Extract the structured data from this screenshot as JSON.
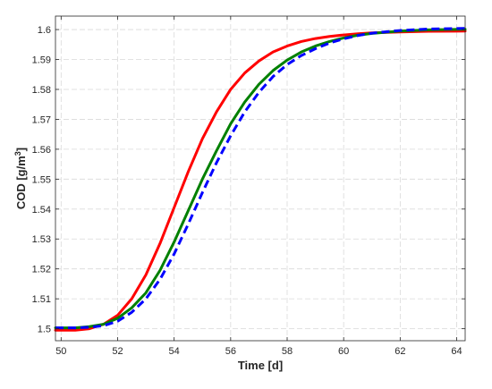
{
  "chart_data": {
    "type": "line",
    "title": "",
    "xlabel": "Time [d]",
    "ylabel_main": "COD [g/m",
    "ylabel_sup": "3",
    "ylabel_close": "]",
    "xlim": [
      49.8,
      64.3
    ],
    "ylim": [
      1.496,
      1.6045
    ],
    "xticks": [
      50,
      52,
      54,
      56,
      58,
      60,
      62,
      64
    ],
    "yticks": [
      1.5,
      1.51,
      1.52,
      1.53,
      1.54,
      1.55,
      1.56,
      1.57,
      1.58,
      1.59,
      1.6
    ],
    "xtick_labels": [
      "50",
      "52",
      "54",
      "56",
      "58",
      "60",
      "62",
      "64"
    ],
    "ytick_labels": [
      "1.5",
      "1.51",
      "1.52",
      "1.53",
      "1.54",
      "1.55",
      "1.56",
      "1.57",
      "1.58",
      "1.59",
      "1.6"
    ],
    "grid": true,
    "legend": "none",
    "series": [
      {
        "color": "#ff0000",
        "style": "solid",
        "x": [
          49.8,
          50.5,
          51.0,
          51.5,
          52.0,
          52.5,
          53.0,
          53.5,
          54.0,
          54.5,
          55.0,
          55.5,
          56.0,
          56.5,
          57.0,
          57.5,
          58.0,
          58.5,
          59.0,
          59.5,
          60.0,
          60.5,
          61.0,
          62.0,
          63.0,
          64.3
        ],
        "y": [
          1.4995,
          1.4995,
          1.5,
          1.5015,
          1.5045,
          1.51,
          1.518,
          1.5285,
          1.5405,
          1.5525,
          1.5635,
          1.5725,
          1.58,
          1.5855,
          1.5895,
          1.5925,
          1.5945,
          1.596,
          1.597,
          1.5977,
          1.5982,
          1.5986,
          1.5989,
          1.5992,
          1.5994,
          1.5995
        ]
      },
      {
        "color": "#008000",
        "style": "solid",
        "x": [
          49.8,
          50.5,
          51.0,
          51.5,
          52.0,
          52.5,
          53.0,
          53.5,
          54.0,
          54.5,
          55.0,
          55.5,
          56.0,
          56.5,
          57.0,
          57.5,
          58.0,
          58.5,
          59.0,
          59.5,
          60.0,
          60.5,
          61.0,
          62.0,
          63.0,
          64.3
        ],
        "y": [
          1.5003,
          1.5003,
          1.5007,
          1.5015,
          1.5035,
          1.507,
          1.512,
          1.5195,
          1.529,
          1.5395,
          1.55,
          1.5595,
          1.5685,
          1.5758,
          1.5817,
          1.5863,
          1.5898,
          1.5925,
          1.5945,
          1.596,
          1.5972,
          1.5981,
          1.5987,
          1.5995,
          1.5999,
          1.6001
        ]
      },
      {
        "color": "#0000ff",
        "style": "dashed",
        "x": [
          49.8,
          50.5,
          51.0,
          51.5,
          52.0,
          52.5,
          53.0,
          53.5,
          54.0,
          54.5,
          55.0,
          55.5,
          56.0,
          56.5,
          57.0,
          57.5,
          58.0,
          58.5,
          59.0,
          59.5,
          60.0,
          60.5,
          61.0,
          62.0,
          63.0,
          64.3
        ],
        "y": [
          1.5003,
          1.5003,
          1.5005,
          1.501,
          1.5025,
          1.5055,
          1.51,
          1.5165,
          1.525,
          1.535,
          1.5455,
          1.5555,
          1.5645,
          1.5725,
          1.579,
          1.5843,
          1.5883,
          1.5913,
          1.5936,
          1.5955,
          1.5969,
          1.598,
          1.5988,
          1.5997,
          1.6002,
          1.6004
        ]
      }
    ]
  }
}
